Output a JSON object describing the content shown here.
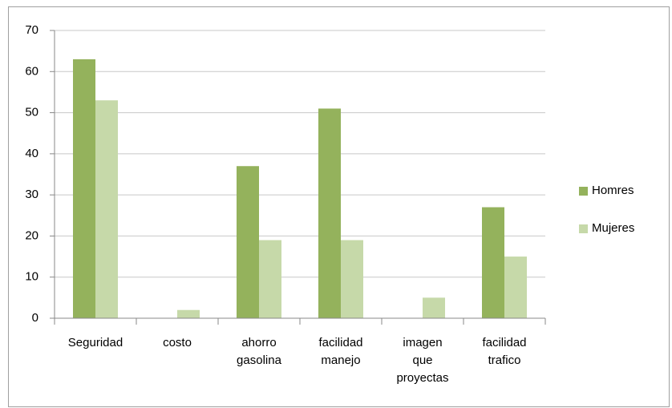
{
  "chart_data": {
    "type": "bar",
    "categories": [
      "Seguridad",
      "costo",
      "ahorro gasolina",
      "facilidad manejo",
      "imagen que proyectas",
      "facilidad trafico"
    ],
    "series": [
      {
        "name": "Homres",
        "color": "#94b25c",
        "values": [
          63,
          0,
          37,
          51,
          0,
          27
        ]
      },
      {
        "name": "Mujeres",
        "color": "#c6d9a9",
        "values": [
          53,
          2,
          19,
          19,
          5,
          15
        ]
      }
    ],
    "ylim": [
      0,
      70
    ],
    "yticks": [
      0,
      10,
      20,
      30,
      40,
      50,
      60,
      70
    ],
    "grid": true,
    "legend": "right"
  }
}
